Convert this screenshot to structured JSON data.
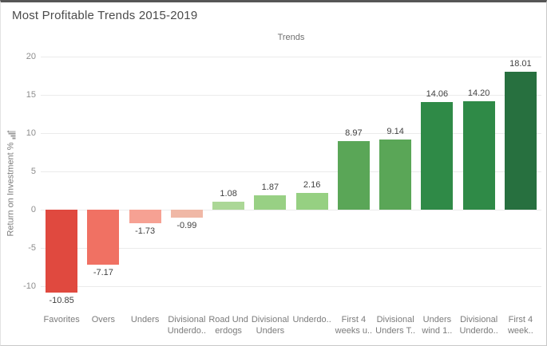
{
  "chart_data": {
    "type": "bar",
    "title": "Most Profitable Trends 2015-2019",
    "column_header": "Trends",
    "ylabel": "Return on Investment %",
    "ylim": [
      -13.1,
      20
    ],
    "yticks": [
      20,
      15,
      10,
      5,
      0,
      -5,
      -10
    ],
    "grid": true,
    "legend": "none",
    "categories": [
      "Favorites",
      "Overs",
      "Unders",
      "Divisional\nUnderdo..",
      "Road Und\nerdogs",
      "Divisional\nUnders",
      "Underdo..",
      "First 4\nweeks u..",
      "Divisional\nUnders T..",
      "Unders\nwind 1..",
      "Divisional\nUnderdo..",
      "First 4\nweek.."
    ],
    "values": [
      -10.85,
      -7.17,
      -1.73,
      -0.99,
      1.08,
      1.87,
      2.16,
      8.97,
      9.14,
      14.06,
      14.2,
      18.01
    ],
    "value_labels": [
      "-10.85",
      "-7.17",
      "-1.73",
      "-0.99",
      "1.08",
      "1.87",
      "2.16",
      "8.97",
      "9.14",
      "14.06",
      "14.20",
      "18.01"
    ],
    "bar_colors": [
      "#e0493f",
      "#f07163",
      "#f6a193",
      "#f0b8a6",
      "#abd796",
      "#98d084",
      "#96d082",
      "#5aa657",
      "#5aa657",
      "#2f8a47",
      "#2f8a47",
      "#27703f"
    ],
    "grid_color": "#ebebeb"
  },
  "icons": {
    "sort_icon": "sort-ascending-bars"
  }
}
